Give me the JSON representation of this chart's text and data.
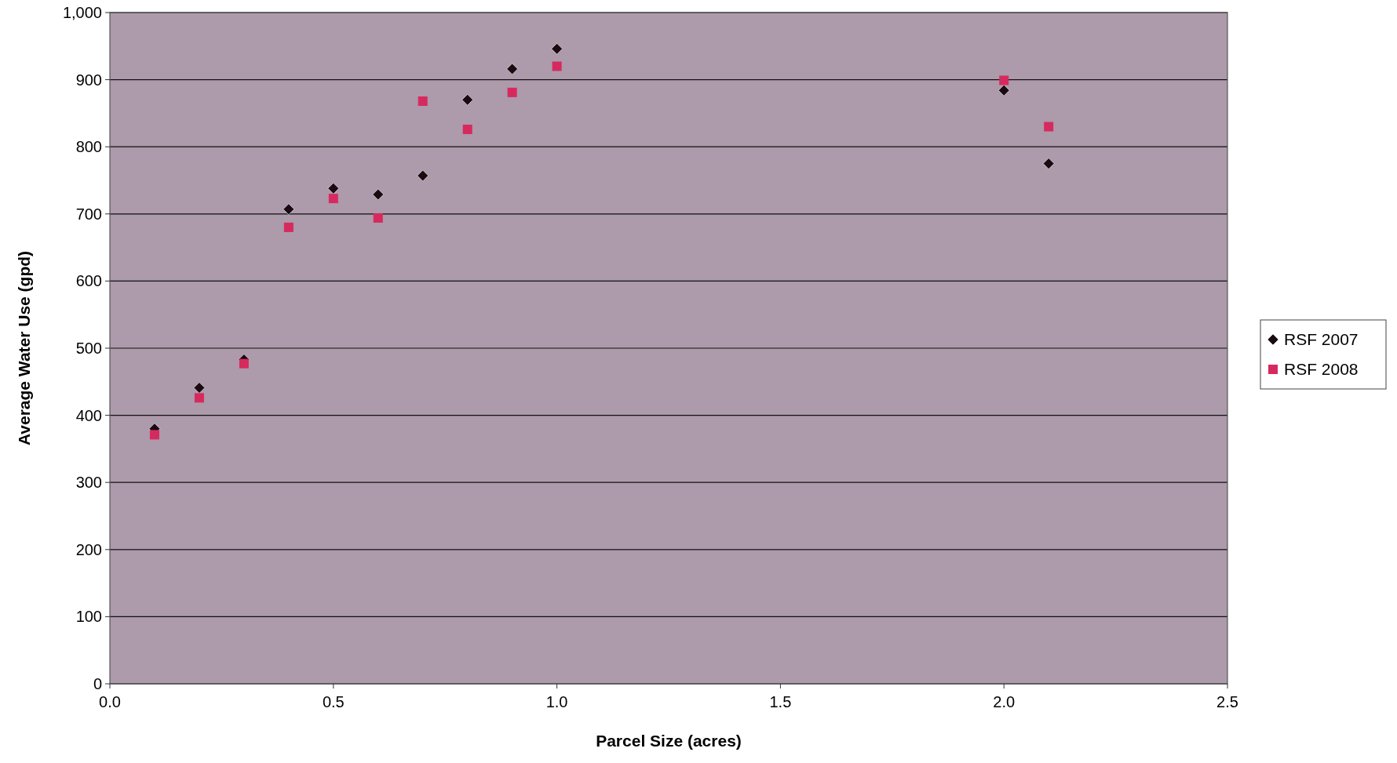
{
  "chart_data": {
    "type": "scatter",
    "xlabel": "Parcel Size (acres)",
    "ylabel": "Average Water Use (gpd)",
    "x": [
      0.1,
      0.2,
      0.3,
      0.4,
      0.5,
      0.6,
      0.7,
      0.8,
      0.9,
      1.0,
      2.0,
      2.1
    ],
    "series": [
      {
        "name": "RSF 2007",
        "color": "#1a0a12",
        "marker": "diamond",
        "values": [
          380,
          441,
          483,
          707,
          738,
          729,
          757,
          870,
          916,
          946,
          884,
          775
        ]
      },
      {
        "name": "RSF 2008",
        "color": "#d62a5e",
        "marker": "square",
        "values": [
          371,
          426,
          477,
          680,
          723,
          694,
          868,
          826,
          881,
          920,
          899,
          830
        ]
      }
    ],
    "xlim": [
      0,
      2.5
    ],
    "xticks": [
      {
        "value": 0,
        "label": "0.0"
      },
      {
        "value": 0.5,
        "label": "0.5"
      },
      {
        "value": 1,
        "label": "1.0"
      },
      {
        "value": 1.5,
        "label": "1.5"
      },
      {
        "value": 2,
        "label": "2.0"
      },
      {
        "value": 2.5,
        "label": "2.5"
      }
    ],
    "ylim": [
      0,
      1000
    ],
    "yticks": [
      0,
      100,
      200,
      300,
      400,
      500,
      600,
      700,
      800,
      900,
      {
        "value": 1000,
        "label": "1,000"
      }
    ],
    "grid": "y",
    "legend": "right"
  }
}
